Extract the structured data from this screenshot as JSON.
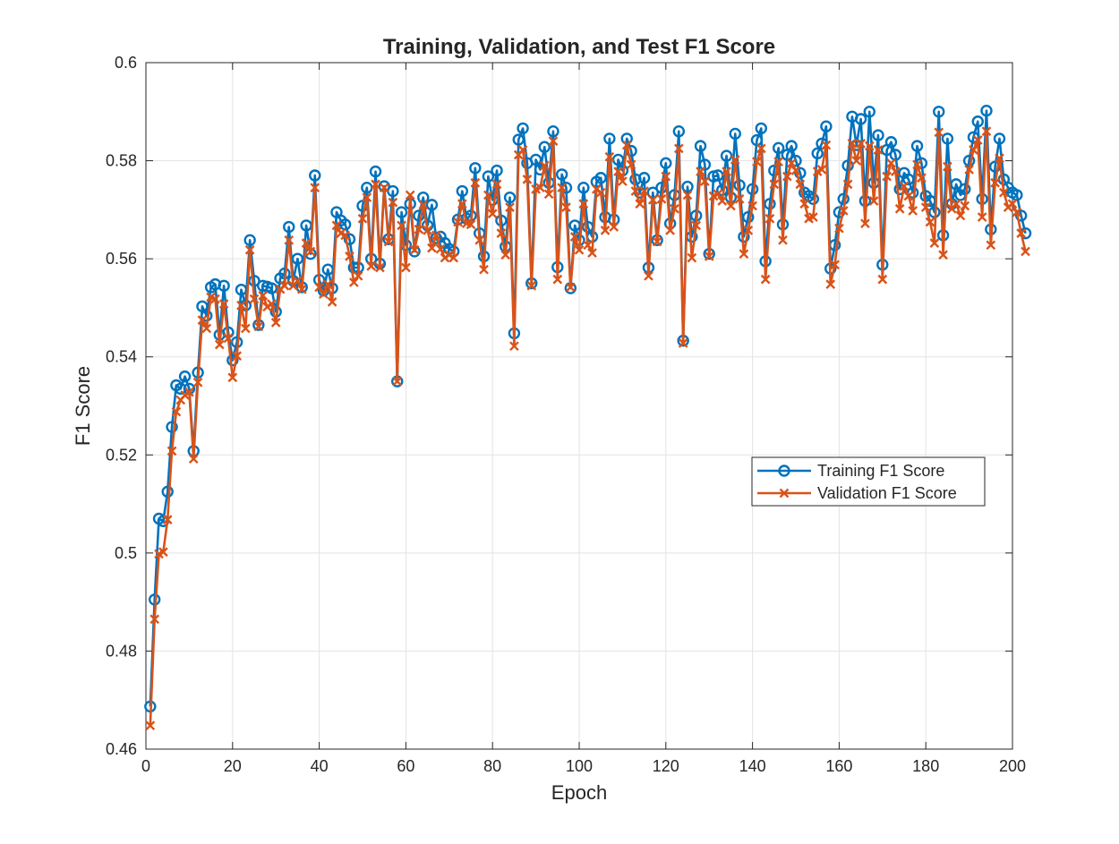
{
  "chart_data": {
    "type": "line",
    "title": "Training, Validation, and Test F1 Score",
    "xlabel": "Epoch",
    "ylabel": "F1 Score",
    "xlim": [
      0,
      200
    ],
    "ylim": [
      0.46,
      0.6
    ],
    "xticks": [
      0,
      20,
      40,
      60,
      80,
      100,
      120,
      140,
      160,
      180,
      200
    ],
    "xtick_labels": [
      "0",
      "20",
      "40",
      "60",
      "80",
      "100",
      "120",
      "140",
      "160",
      "180",
      "200"
    ],
    "yticks": [
      0.46,
      0.48,
      0.5,
      0.52,
      0.54,
      0.56,
      0.58,
      0.6
    ],
    "ytick_labels": [
      "0.46",
      "0.48",
      "0.5",
      "0.52",
      "0.54",
      "0.56",
      "0.58",
      "0.6"
    ],
    "grid": true,
    "legend_position": "center-right",
    "series": [
      {
        "name": "Training F1 Score",
        "color": "#0072BD",
        "marker": "circle",
        "values": [
          0.4687,
          0.4905,
          0.507,
          0.5065,
          0.5125,
          0.5257,
          0.5342,
          0.5335,
          0.536,
          0.5335,
          0.5208,
          0.5368,
          0.5503,
          0.5484,
          0.5542,
          0.5548,
          0.5445,
          0.5545,
          0.545,
          0.5393,
          0.543,
          0.5537,
          0.5505,
          0.5638,
          0.5555,
          0.5465,
          0.5545,
          0.5543,
          0.554,
          0.5492,
          0.556,
          0.557,
          0.5665,
          0.5555,
          0.56,
          0.5542,
          0.5668,
          0.561,
          0.577,
          0.5557,
          0.5535,
          0.5578,
          0.554,
          0.5695,
          0.5678,
          0.567,
          0.564,
          0.5582,
          0.5582,
          0.5708,
          0.5745,
          0.56,
          0.5778,
          0.559,
          0.5748,
          0.564,
          0.5738,
          0.535,
          0.5695,
          0.5628,
          0.5712,
          0.5615,
          0.5688,
          0.5725,
          0.5668,
          0.571,
          0.5642,
          0.5645,
          0.5632,
          0.562,
          0.5615,
          0.568,
          0.5738,
          0.5682,
          0.5688,
          0.5785,
          0.5652,
          0.5605,
          0.5768,
          0.572,
          0.578,
          0.5678,
          0.5625,
          0.5725,
          0.5448,
          0.5843,
          0.5866,
          0.5795,
          0.555,
          0.5802,
          0.5782,
          0.5828,
          0.5755,
          0.586,
          0.5583,
          0.5772,
          0.5745,
          0.554,
          0.5668,
          0.5638,
          0.5745,
          0.5665,
          0.5645,
          0.5757,
          0.5765,
          0.5685,
          0.5845,
          0.568,
          0.5802,
          0.578,
          0.5845,
          0.582,
          0.5762,
          0.5735,
          0.5765,
          0.5582,
          0.5735,
          0.5638,
          0.5745,
          0.5795,
          0.5672,
          0.573,
          0.586,
          0.5433,
          0.5747,
          0.5645,
          0.5688,
          0.583,
          0.5792,
          0.561,
          0.5768,
          0.577,
          0.574,
          0.581,
          0.5725,
          0.5855,
          0.575,
          0.5645,
          0.5685,
          0.5742,
          0.5842,
          0.5866,
          0.5595,
          0.5712,
          0.578,
          0.5826,
          0.567,
          0.5812,
          0.583,
          0.58,
          0.5775,
          0.5735,
          0.5728,
          0.5722,
          0.5815,
          0.5835,
          0.587,
          0.558,
          0.5628,
          0.5695,
          0.5722,
          0.579,
          0.589,
          0.5832,
          0.5885,
          0.5718,
          0.59,
          0.5755,
          0.5852,
          0.5588,
          0.5822,
          0.5838,
          0.5812,
          0.5742,
          0.5775,
          0.5762,
          0.5735,
          0.583,
          0.5795,
          0.5728,
          0.5718,
          0.5695,
          0.59,
          0.5648,
          0.5845,
          0.5712,
          0.5752,
          0.573,
          0.5742,
          0.58,
          0.5848,
          0.588,
          0.5722,
          0.5902,
          0.566,
          0.5788,
          0.5845,
          0.5762,
          0.5745,
          0.5735,
          0.573,
          0.5688,
          0.5652
        ]
      },
      {
        "name": "Validation F1 Score",
        "color": "#D95319",
        "marker": "x",
        "values": [
          0.4648,
          0.4865,
          0.4998,
          0.5002,
          0.5068,
          0.5208,
          0.5288,
          0.5312,
          0.5322,
          0.5328,
          0.5192,
          0.5348,
          0.5475,
          0.5458,
          0.5522,
          0.5518,
          0.5425,
          0.5508,
          0.5438,
          0.5358,
          0.5402,
          0.5505,
          0.5458,
          0.5618,
          0.5518,
          0.5462,
          0.5525,
          0.5502,
          0.5508,
          0.547,
          0.5538,
          0.5545,
          0.5638,
          0.5545,
          0.5555,
          0.5538,
          0.5632,
          0.5615,
          0.5745,
          0.5542,
          0.5528,
          0.5548,
          0.5512,
          0.5668,
          0.5652,
          0.5648,
          0.5605,
          0.5552,
          0.5565,
          0.5682,
          0.5725,
          0.5585,
          0.5752,
          0.5582,
          0.5745,
          0.5635,
          0.5715,
          0.535,
          0.5668,
          0.5582,
          0.573,
          0.5618,
          0.566,
          0.571,
          0.5658,
          0.5622,
          0.5648,
          0.562,
          0.5602,
          0.5608,
          0.5602,
          0.5675,
          0.5712,
          0.5672,
          0.567,
          0.5755,
          0.5638,
          0.5578,
          0.573,
          0.5692,
          0.5752,
          0.5652,
          0.5608,
          0.5705,
          0.5422,
          0.5812,
          0.5822,
          0.5762,
          0.5545,
          0.5742,
          0.5745,
          0.579,
          0.5732,
          0.584,
          0.5558,
          0.5745,
          0.5705,
          0.5542,
          0.5645,
          0.5618,
          0.5712,
          0.5628,
          0.5612,
          0.5742,
          0.5735,
          0.5658,
          0.5808,
          0.5665,
          0.5778,
          0.5758,
          0.5832,
          0.5792,
          0.5738,
          0.5712,
          0.5738,
          0.5565,
          0.572,
          0.5635,
          0.5722,
          0.5768,
          0.5658,
          0.5702,
          0.5825,
          0.5428,
          0.573,
          0.5602,
          0.5668,
          0.5778,
          0.5758,
          0.5605,
          0.5728,
          0.5732,
          0.5718,
          0.5778,
          0.5708,
          0.5802,
          0.5722,
          0.561,
          0.5658,
          0.5708,
          0.5798,
          0.5825,
          0.5558,
          0.5682,
          0.5752,
          0.5798,
          0.5638,
          0.5768,
          0.5795,
          0.578,
          0.5752,
          0.5712,
          0.5682,
          0.5685,
          0.5778,
          0.5782,
          0.5832,
          0.5548,
          0.5588,
          0.5662,
          0.5698,
          0.5752,
          0.5835,
          0.58,
          0.5835,
          0.5672,
          0.583,
          0.5718,
          0.5822,
          0.5558,
          0.5768,
          0.5795,
          0.5778,
          0.5702,
          0.5748,
          0.5728,
          0.5698,
          0.5792,
          0.5765,
          0.5705,
          0.5675,
          0.5632,
          0.5858,
          0.5608,
          0.5788,
          0.5702,
          0.5712,
          0.5688,
          0.5708,
          0.5782,
          0.5822,
          0.5842,
          0.5685,
          0.586,
          0.5628,
          0.5755,
          0.5805,
          0.5735,
          0.5705,
          0.5712,
          0.5695,
          0.5652,
          0.5615
        ]
      }
    ]
  }
}
